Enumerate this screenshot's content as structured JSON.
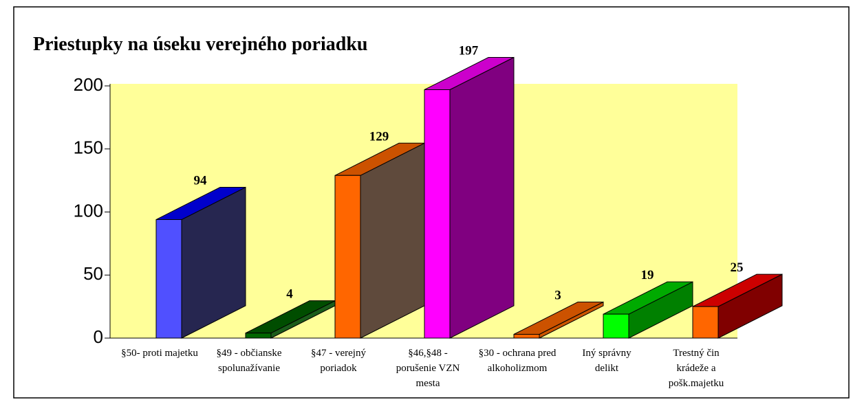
{
  "chart_data": {
    "type": "bar3d",
    "title": "Priestupky na úseku verejného poriadku",
    "categories": [
      [
        "§50- proti majetku"
      ],
      [
        "§49 - občianske",
        "spolunažívanie"
      ],
      [
        "§47 - verejný",
        "poriadok"
      ],
      [
        "§46,§48 -",
        "porušenie VZN",
        "mesta"
      ],
      [
        "§30 - ochrana pred",
        "alkoholizmom"
      ],
      [
        "Iný správny",
        "delikt"
      ],
      [
        "Trestný čin",
        "krádeže a",
        "pošk.majetku"
      ]
    ],
    "values": [
      94,
      4,
      129,
      197,
      3,
      19,
      25
    ],
    "colors": [
      "#5050ff",
      "#006600",
      "#ff6600",
      "#ff00ff",
      "#ff6600",
      "#00ff00",
      "#ff6600"
    ],
    "side_colors": [
      "#262650",
      "#1a5c1a",
      "#5f4a3c",
      "#800080",
      "#cc5500",
      "#008000",
      "#800000"
    ],
    "top_colors": [
      "#0000cc",
      "#004d00",
      "#cc5200",
      "#cc00cc",
      "#cc5200",
      "#00aa00",
      "#cc0000"
    ],
    "plot_background": "#ffff99",
    "ylim": [
      0,
      200
    ],
    "yticks": [
      0,
      50,
      100,
      150,
      200
    ]
  }
}
